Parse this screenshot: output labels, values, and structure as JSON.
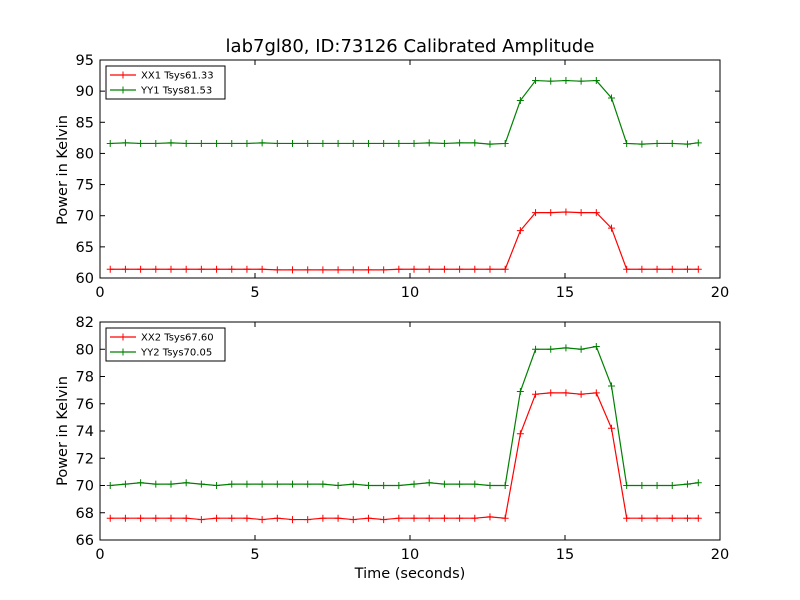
{
  "chart_data": [
    {
      "type": "line",
      "title": "lab7gl80, ID:73126 Calibrated Amplitude",
      "xlabel": "",
      "ylabel": "Power in Kelvin",
      "xlim": [
        0,
        20
      ],
      "ylim": [
        60,
        95
      ],
      "xticks": [
        0,
        5,
        10,
        15,
        20
      ],
      "yticks": [
        60,
        65,
        70,
        75,
        80,
        85,
        90,
        95
      ],
      "grid": false,
      "legend_position": "top-left",
      "x": [
        0.33,
        0.82,
        1.31,
        1.8,
        2.29,
        2.78,
        3.27,
        3.76,
        4.25,
        4.74,
        5.23,
        5.72,
        6.21,
        6.7,
        7.19,
        7.68,
        8.17,
        8.66,
        9.15,
        9.64,
        10.13,
        10.62,
        11.11,
        11.6,
        12.09,
        12.58,
        13.07,
        13.56,
        14.05,
        14.54,
        15.03,
        15.52,
        16.01,
        16.5,
        16.99,
        17.48,
        17.97,
        18.46,
        18.95,
        19.3
      ],
      "series": [
        {
          "name": "XX1 Tsys61.33",
          "color": "#ff0000",
          "values": [
            61.4,
            61.4,
            61.4,
            61.4,
            61.4,
            61.4,
            61.4,
            61.4,
            61.4,
            61.4,
            61.4,
            61.3,
            61.3,
            61.3,
            61.3,
            61.3,
            61.3,
            61.3,
            61.3,
            61.4,
            61.4,
            61.4,
            61.4,
            61.4,
            61.4,
            61.4,
            61.4,
            67.6,
            70.5,
            70.5,
            70.6,
            70.5,
            70.5,
            68.0,
            61.4,
            61.4,
            61.4,
            61.4,
            61.4,
            61.4
          ]
        },
        {
          "name": "YY1 Tsys81.53",
          "color": "#008000",
          "values": [
            81.6,
            81.7,
            81.6,
            81.6,
            81.7,
            81.6,
            81.6,
            81.6,
            81.6,
            81.6,
            81.7,
            81.6,
            81.6,
            81.6,
            81.6,
            81.6,
            81.6,
            81.6,
            81.6,
            81.6,
            81.6,
            81.7,
            81.6,
            81.7,
            81.7,
            81.5,
            81.6,
            88.5,
            91.7,
            91.6,
            91.7,
            91.6,
            91.7,
            88.9,
            81.6,
            81.5,
            81.6,
            81.6,
            81.5,
            81.7
          ]
        }
      ]
    },
    {
      "type": "line",
      "title": "",
      "xlabel": "Time (seconds)",
      "ylabel": "Power in Kelvin",
      "xlim": [
        0,
        20
      ],
      "ylim": [
        66,
        82
      ],
      "xticks": [
        0,
        5,
        10,
        15,
        20
      ],
      "yticks": [
        66,
        68,
        70,
        72,
        74,
        76,
        78,
        80,
        82
      ],
      "grid": false,
      "legend_position": "top-left",
      "x": [
        0.33,
        0.82,
        1.31,
        1.8,
        2.29,
        2.78,
        3.27,
        3.76,
        4.25,
        4.74,
        5.23,
        5.72,
        6.21,
        6.7,
        7.19,
        7.68,
        8.17,
        8.66,
        9.15,
        9.64,
        10.13,
        10.62,
        11.11,
        11.6,
        12.09,
        12.58,
        13.07,
        13.56,
        14.05,
        14.54,
        15.03,
        15.52,
        16.01,
        16.5,
        16.99,
        17.48,
        17.97,
        18.46,
        18.95,
        19.3
      ],
      "series": [
        {
          "name": "XX2 Tsys67.60",
          "color": "#ff0000",
          "values": [
            67.6,
            67.6,
            67.6,
            67.6,
            67.6,
            67.6,
            67.5,
            67.6,
            67.6,
            67.6,
            67.5,
            67.6,
            67.5,
            67.5,
            67.6,
            67.6,
            67.5,
            67.6,
            67.5,
            67.6,
            67.6,
            67.6,
            67.6,
            67.6,
            67.6,
            67.7,
            67.6,
            73.8,
            76.7,
            76.8,
            76.8,
            76.7,
            76.8,
            74.2,
            67.6,
            67.6,
            67.6,
            67.6,
            67.6,
            67.6
          ]
        },
        {
          "name": "YY2 Tsys70.05",
          "color": "#008000",
          "values": [
            70.0,
            70.1,
            70.2,
            70.1,
            70.1,
            70.2,
            70.1,
            70.0,
            70.1,
            70.1,
            70.1,
            70.1,
            70.1,
            70.1,
            70.1,
            70.0,
            70.1,
            70.0,
            70.0,
            70.0,
            70.1,
            70.2,
            70.1,
            70.1,
            70.1,
            70.0,
            70.0,
            76.9,
            80.0,
            80.0,
            80.1,
            80.0,
            80.2,
            77.3,
            70.0,
            70.0,
            70.0,
            70.0,
            70.1,
            70.2
          ]
        }
      ]
    }
  ]
}
